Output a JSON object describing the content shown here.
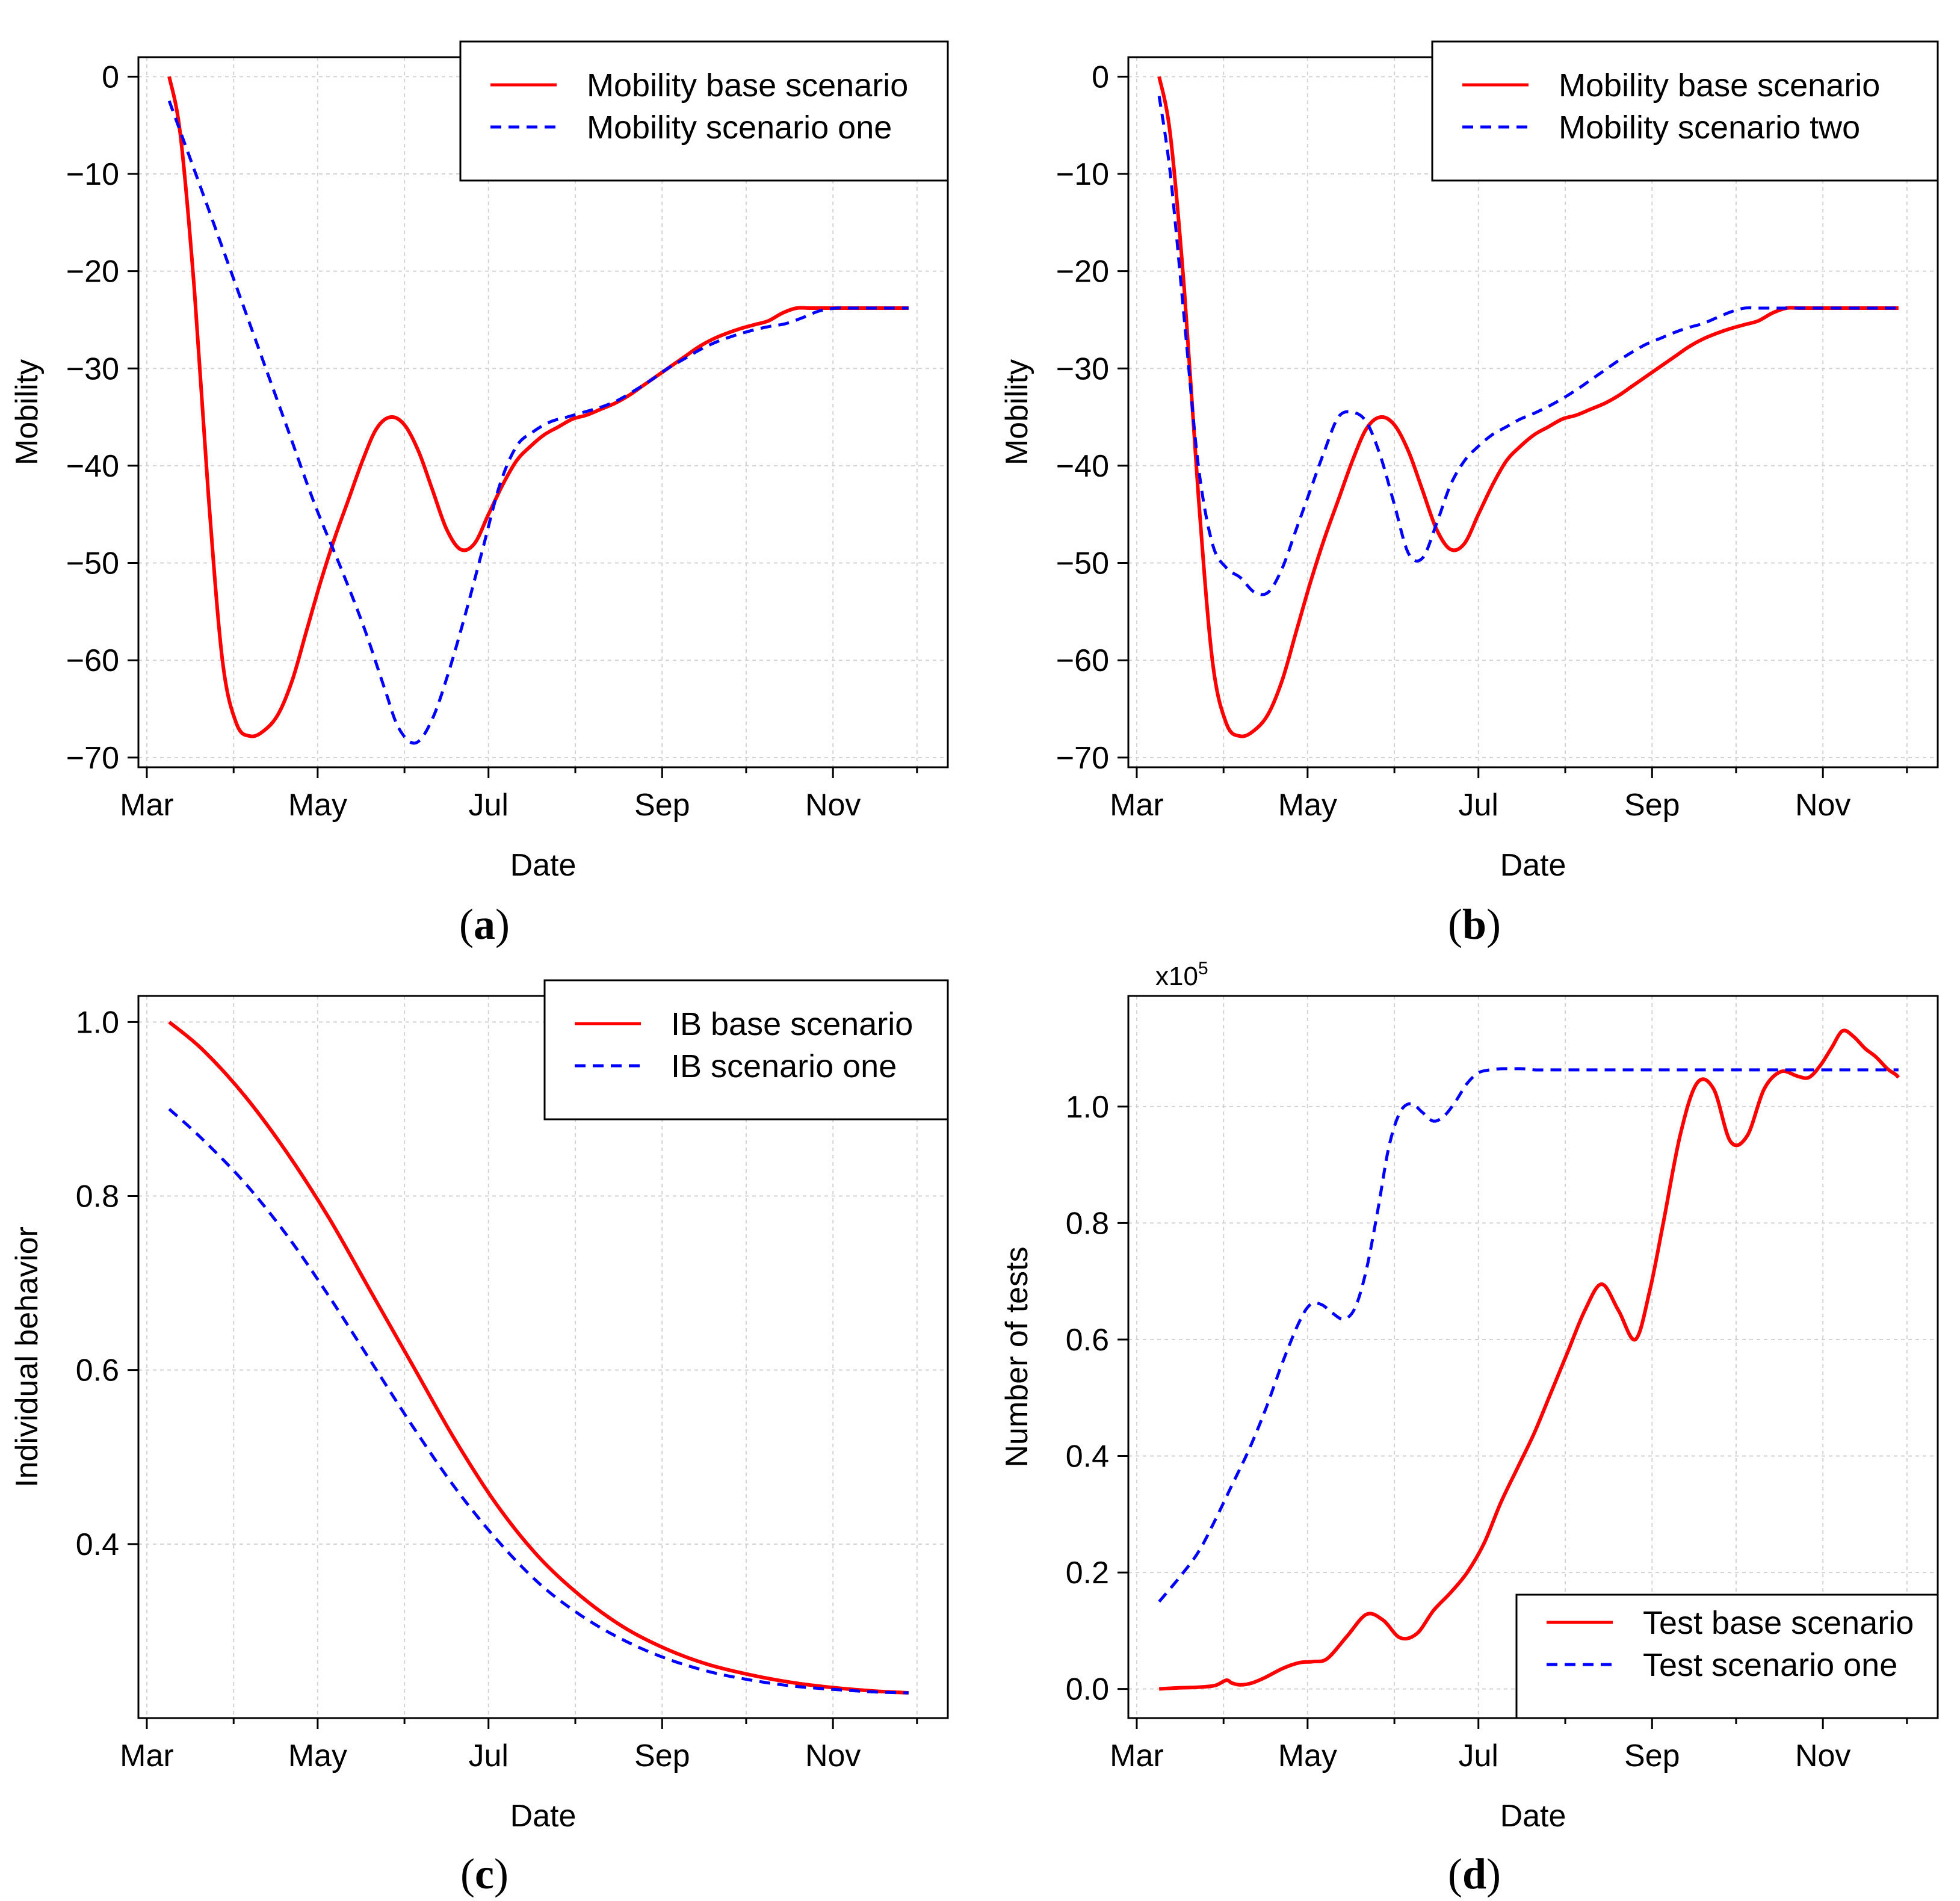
{
  "chart_data": [
    {
      "id": "a",
      "type": "line",
      "caption": "a",
      "xlabel": "Date",
      "ylabel": "Mobility",
      "x_unit": "day index (0 = Mar 1)",
      "xlim": [
        -3,
        286
      ],
      "ylim": [
        -71,
        2
      ],
      "x_ticks": [
        {
          "label": "Mar",
          "value": 0
        },
        {
          "label": "May",
          "value": 61
        },
        {
          "label": "Jul",
          "value": 122
        },
        {
          "label": "Sep",
          "value": 184
        },
        {
          "label": "Nov",
          "value": 245
        }
      ],
      "x_minor_ticks": [
        31,
        92,
        153,
        214,
        275
      ],
      "y_ticks": [
        0,
        -10,
        -20,
        -30,
        -40,
        -50,
        -60,
        -70
      ],
      "legend_position": "top-right",
      "series": [
        {
          "name": "Mobility base scenario",
          "color": "#ff0000",
          "dash": "solid",
          "x": [
            8,
            12,
            17,
            22,
            27,
            32,
            37,
            42,
            47,
            52,
            57,
            62,
            67,
            72,
            77,
            82,
            87,
            92,
            97,
            102,
            107,
            112,
            117,
            122,
            127,
            132,
            137,
            142,
            147,
            152,
            157,
            162,
            167,
            172,
            177,
            182,
            187,
            192,
            197,
            202,
            207,
            212,
            217,
            222,
            227,
            232,
            237,
            242,
            247,
            252,
            257,
            262,
            267,
            272
          ],
          "y": [
            0,
            -6,
            -22,
            -43,
            -60,
            -66.5,
            -67.8,
            -67.2,
            -65.5,
            -62,
            -57,
            -52,
            -47.5,
            -43.5,
            -39.5,
            -36.2,
            -35,
            -35.8,
            -38.5,
            -42.5,
            -46.5,
            -48.6,
            -48,
            -45,
            -42,
            -39.5,
            -38,
            -36.8,
            -36,
            -35.2,
            -34.8,
            -34.2,
            -33.6,
            -32.8,
            -31.8,
            -30.8,
            -29.8,
            -28.8,
            -27.8,
            -27,
            -26.4,
            -25.9,
            -25.5,
            -25.1,
            -24.3,
            -23.8,
            -23.8,
            -23.8,
            -23.8,
            -23.8,
            -23.8,
            -23.8,
            -23.8,
            -23.8
          ]
        },
        {
          "name": "Mobility scenario one",
          "color": "#0000ff",
          "dash": "dashed",
          "x": [
            8,
            20,
            30,
            40,
            50,
            60,
            70,
            78,
            85,
            90,
            96,
            102,
            108,
            114,
            120,
            126,
            132,
            138,
            144,
            150,
            156,
            162,
            168,
            174,
            180,
            186,
            192,
            198,
            204,
            210,
            216,
            222,
            228,
            234,
            240,
            246,
            252,
            258,
            264,
            268,
            272
          ],
          "y": [
            -2.5,
            -12,
            -20,
            -28,
            -36,
            -44,
            -51,
            -57,
            -63,
            -67,
            -68.5,
            -66,
            -61,
            -55,
            -48.5,
            -42,
            -38,
            -36.5,
            -35.5,
            -35,
            -34.5,
            -34,
            -33.3,
            -32.3,
            -31.2,
            -30,
            -29,
            -28,
            -27.2,
            -26.6,
            -26.1,
            -25.7,
            -25.4,
            -24.8,
            -24.1,
            -23.8,
            -23.8,
            -23.8,
            -23.8,
            -23.8,
            -23.8
          ]
        }
      ]
    },
    {
      "id": "b",
      "type": "line",
      "caption": "b",
      "xlabel": "Date",
      "ylabel": "Mobility",
      "x_unit": "day index (0 = Mar 1)",
      "xlim": [
        -3,
        286
      ],
      "ylim": [
        -71,
        2
      ],
      "x_ticks": [
        {
          "label": "Mar",
          "value": 0
        },
        {
          "label": "May",
          "value": 61
        },
        {
          "label": "Jul",
          "value": 122
        },
        {
          "label": "Sep",
          "value": 184
        },
        {
          "label": "Nov",
          "value": 245
        }
      ],
      "x_minor_ticks": [
        31,
        92,
        153,
        214,
        275
      ],
      "y_ticks": [
        0,
        -10,
        -20,
        -30,
        -40,
        -50,
        -60,
        -70
      ],
      "legend_position": "top-right",
      "series": [
        {
          "name": "Mobility base scenario",
          "color": "#ff0000",
          "dash": "solid",
          "x": [
            8,
            12,
            17,
            22,
            27,
            32,
            37,
            42,
            47,
            52,
            57,
            62,
            67,
            72,
            77,
            82,
            87,
            92,
            97,
            102,
            107,
            112,
            117,
            122,
            127,
            132,
            137,
            142,
            147,
            152,
            157,
            162,
            167,
            172,
            177,
            182,
            187,
            192,
            197,
            202,
            207,
            212,
            217,
            222,
            227,
            232,
            237,
            242,
            247,
            252,
            257,
            262,
            267,
            272
          ],
          "y": [
            0,
            -6,
            -22,
            -43,
            -60,
            -66.5,
            -67.8,
            -67.2,
            -65.5,
            -62,
            -57,
            -52,
            -47.5,
            -43.5,
            -39.5,
            -36.2,
            -35,
            -35.8,
            -38.5,
            -42.5,
            -46.5,
            -48.6,
            -48,
            -45,
            -42,
            -39.5,
            -38,
            -36.8,
            -36,
            -35.2,
            -34.8,
            -34.2,
            -33.6,
            -32.8,
            -31.8,
            -30.8,
            -29.8,
            -28.8,
            -27.8,
            -27,
            -26.4,
            -25.9,
            -25.5,
            -25.1,
            -24.3,
            -23.8,
            -23.8,
            -23.8,
            -23.8,
            -23.8,
            -23.8,
            -23.8,
            -23.8,
            -23.8
          ]
        },
        {
          "name": "Mobility scenario two",
          "color": "#0000ff",
          "dash": "dashed",
          "x": [
            8,
            12,
            17,
            22,
            27,
            32,
            37,
            42,
            47,
            52,
            57,
            62,
            67,
            72,
            77,
            82,
            87,
            92,
            97,
            102,
            107,
            112,
            117,
            122,
            127,
            132,
            137,
            142,
            147,
            152,
            157,
            162,
            167,
            172,
            177,
            182,
            187,
            192,
            197,
            202,
            207,
            212,
            217,
            222,
            227,
            232,
            237,
            242,
            247,
            252,
            257,
            262,
            267,
            272
          ],
          "y": [
            -2,
            -10,
            -25,
            -40,
            -48,
            -50.5,
            -51.5,
            -53,
            -53,
            -50.5,
            -46.5,
            -42.5,
            -38.5,
            -35,
            -34.5,
            -35.5,
            -39,
            -44,
            -49,
            -49.5,
            -46,
            -42,
            -39.5,
            -38,
            -36.8,
            -36,
            -35.2,
            -34.6,
            -33.9,
            -33.1,
            -32.2,
            -31.2,
            -30.2,
            -29.2,
            -28.3,
            -27.5,
            -26.9,
            -26.3,
            -25.8,
            -25.4,
            -24.8,
            -24.2,
            -23.8,
            -23.8,
            -23.8,
            -23.8,
            -23.8,
            -23.8,
            -23.8,
            -23.8,
            -23.8,
            -23.8,
            -23.8,
            -23.8
          ]
        }
      ]
    },
    {
      "id": "c",
      "type": "line",
      "caption": "c",
      "xlabel": "Date",
      "ylabel": "Individual behavior",
      "x_unit": "day index (0 = Mar 1)",
      "xlim": [
        -3,
        286
      ],
      "ylim": [
        0.2,
        1.03
      ],
      "x_ticks": [
        {
          "label": "Mar",
          "value": 0
        },
        {
          "label": "May",
          "value": 61
        },
        {
          "label": "Jul",
          "value": 122
        },
        {
          "label": "Sep",
          "value": 184
        },
        {
          "label": "Nov",
          "value": 245
        }
      ],
      "x_minor_ticks": [
        31,
        92,
        153,
        214,
        275
      ],
      "y_ticks": [
        1.0,
        0.8,
        0.6,
        0.4
      ],
      "legend_position": "top-right",
      "series": [
        {
          "name": "IB base scenario",
          "color": "#ff0000",
          "dash": "solid",
          "x": [
            8,
            20,
            35,
            50,
            65,
            80,
            95,
            110,
            125,
            140,
            155,
            170,
            185,
            200,
            215,
            230,
            245,
            260,
            272
          ],
          "y": [
            1.0,
            0.968,
            0.915,
            0.85,
            0.775,
            0.69,
            0.605,
            0.52,
            0.445,
            0.385,
            0.34,
            0.305,
            0.28,
            0.262,
            0.25,
            0.241,
            0.235,
            0.231,
            0.229
          ]
        },
        {
          "name": "IB scenario one",
          "color": "#0000ff",
          "dash": "dashed",
          "x": [
            8,
            20,
            35,
            50,
            65,
            80,
            95,
            110,
            125,
            140,
            155,
            170,
            185,
            200,
            215,
            230,
            245,
            260,
            272
          ],
          "y": [
            0.9,
            0.865,
            0.815,
            0.755,
            0.685,
            0.61,
            0.535,
            0.465,
            0.405,
            0.355,
            0.318,
            0.29,
            0.269,
            0.254,
            0.244,
            0.237,
            0.233,
            0.23,
            0.229
          ]
        }
      ]
    },
    {
      "id": "d",
      "type": "line",
      "caption": "d",
      "xlabel": "Date",
      "ylabel": "Number of tests",
      "y_multiplier": "x10",
      "y_multiplier_exp": "5",
      "x_unit": "day index (0 = Mar 1)",
      "xlim": [
        -3,
        286
      ],
      "ylim": [
        -0.05,
        1.19
      ],
      "x_ticks": [
        {
          "label": "Mar",
          "value": 0
        },
        {
          "label": "May",
          "value": 61
        },
        {
          "label": "Jul",
          "value": 122
        },
        {
          "label": "Sep",
          "value": 184
        },
        {
          "label": "Nov",
          "value": 245
        }
      ],
      "x_minor_ticks": [
        31,
        92,
        153,
        214,
        275
      ],
      "y_ticks": [
        1.0,
        0.8,
        0.6,
        0.4,
        0.2,
        0.0
      ],
      "legend_position": "bottom-right",
      "series": [
        {
          "name": "Test base scenario",
          "color": "#ff0000",
          "dash": "solid",
          "x": [
            8,
            15,
            22,
            28,
            32,
            34,
            37,
            41,
            46,
            52,
            58,
            63,
            68,
            75,
            82,
            88,
            94,
            100,
            106,
            112,
            118,
            124,
            130,
            136,
            142,
            148,
            154,
            160,
            166,
            172,
            178,
            183,
            188,
            194,
            200,
            206,
            212,
            218,
            224,
            230,
            236,
            240,
            244,
            248,
            252,
            256,
            260,
            264,
            268,
            271,
            272
          ],
          "y": [
            0.0,
            0.002,
            0.003,
            0.006,
            0.015,
            0.01,
            0.007,
            0.01,
            0.02,
            0.035,
            0.045,
            0.047,
            0.052,
            0.09,
            0.128,
            0.118,
            0.088,
            0.095,
            0.135,
            0.165,
            0.2,
            0.25,
            0.32,
            0.38,
            0.44,
            0.51,
            0.58,
            0.65,
            0.695,
            0.65,
            0.6,
            0.68,
            0.8,
            0.95,
            1.04,
            1.03,
            0.94,
            0.95,
            1.03,
            1.06,
            1.052,
            1.05,
            1.07,
            1.1,
            1.13,
            1.12,
            1.1,
            1.085,
            1.065,
            1.055,
            1.05
          ]
        },
        {
          "name": "Test scenario one",
          "color": "#0000ff",
          "dash": "dashed",
          "x": [
            8,
            15,
            22,
            28,
            34,
            40,
            46,
            52,
            58,
            62,
            66,
            70,
            74,
            78,
            82,
            86,
            90,
            94,
            98,
            102,
            106,
            110,
            114,
            118,
            122,
            126,
            130,
            134,
            138,
            142,
            146,
            150,
            160,
            180,
            200,
            220,
            240,
            260,
            272
          ],
          "y": [
            0.15,
            0.19,
            0.235,
            0.29,
            0.35,
            0.41,
            0.48,
            0.56,
            0.63,
            0.66,
            0.66,
            0.645,
            0.635,
            0.655,
            0.72,
            0.82,
            0.93,
            0.99,
            1.005,
            0.99,
            0.975,
            0.985,
            1.01,
            1.04,
            1.058,
            1.063,
            1.065,
            1.065,
            1.065,
            1.063,
            1.063,
            1.063,
            1.063,
            1.063,
            1.063,
            1.063,
            1.063,
            1.063,
            1.063
          ]
        }
      ]
    }
  ]
}
